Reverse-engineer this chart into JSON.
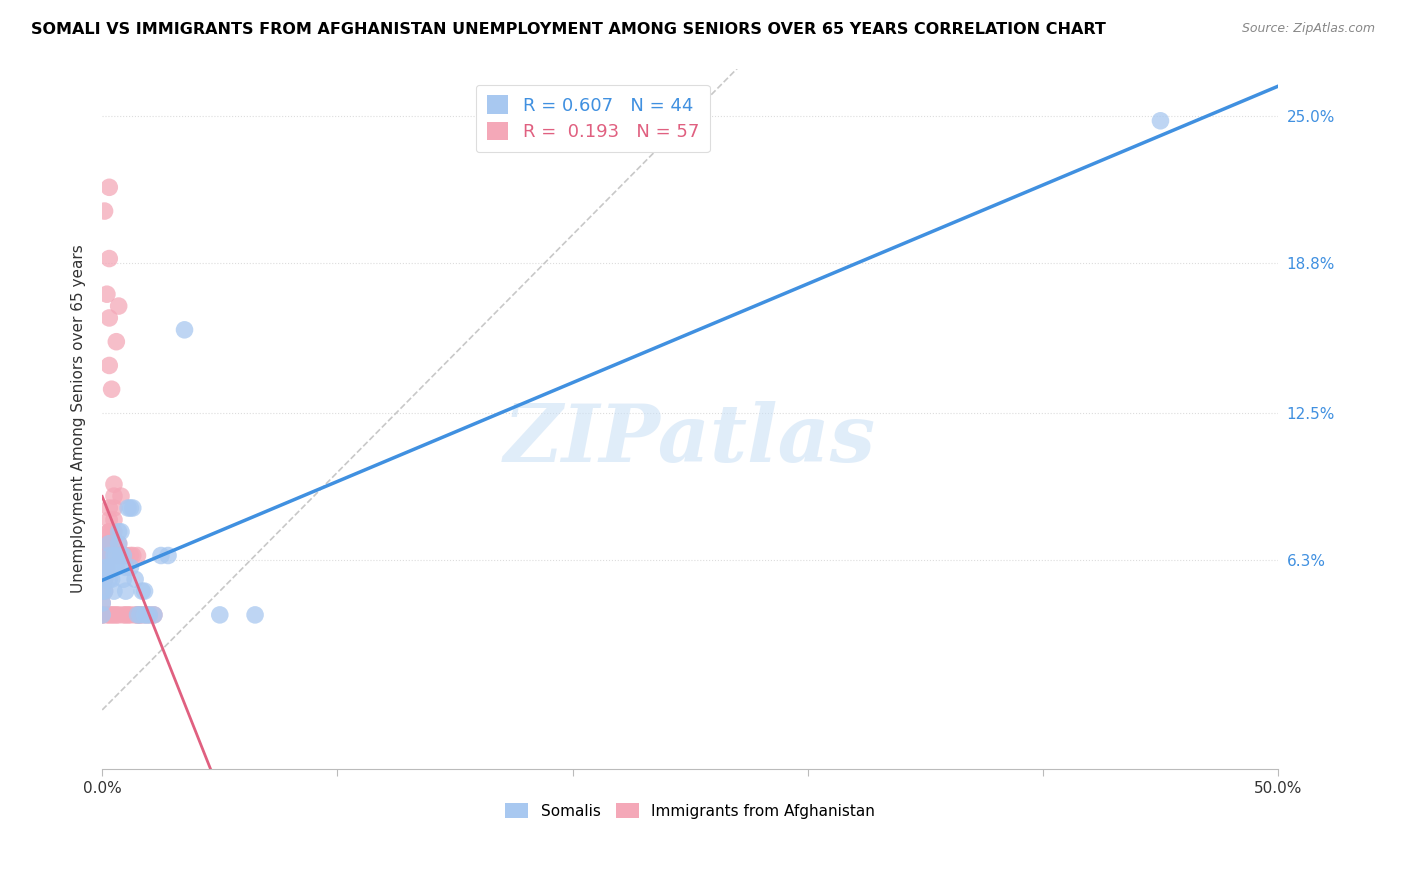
{
  "title": "SOMALI VS IMMIGRANTS FROM AFGHANISTAN UNEMPLOYMENT AMONG SENIORS OVER 65 YEARS CORRELATION CHART",
  "source": "Source: ZipAtlas.com",
  "ylabel": "Unemployment Among Seniors over 65 years",
  "watermark": "ZIPatlas",
  "somali_color": "#A8C8F0",
  "afghan_color": "#F4A8B8",
  "regression_somali_color": "#4090E0",
  "regression_afghan_color": "#E06080",
  "diagonal_color": "#C8C8C8",
  "xlim": [
    0.0,
    0.5
  ],
  "ylim": [
    -0.025,
    0.27
  ],
  "ytick_values": [
    0.063,
    0.125,
    0.188,
    0.25
  ],
  "ytick_labels": [
    "6.3%",
    "12.5%",
    "18.8%",
    "25.0%"
  ],
  "xtick_values": [
    0.0,
    0.1,
    0.2,
    0.3,
    0.4,
    0.5
  ],
  "xtick_labels": [
    "0.0%",
    "",
    "",
    "",
    "",
    "50.0%"
  ],
  "legend_somali_R": 0.607,
  "legend_somali_N": 44,
  "legend_afghan_R": 0.193,
  "legend_afghan_N": 57,
  "somali_points_x": [
    0.0,
    0.0,
    0.0,
    0.001,
    0.001,
    0.002,
    0.002,
    0.003,
    0.003,
    0.003,
    0.004,
    0.004,
    0.005,
    0.005,
    0.005,
    0.006,
    0.006,
    0.007,
    0.007,
    0.008,
    0.008,
    0.009,
    0.009,
    0.01,
    0.01,
    0.011,
    0.012,
    0.012,
    0.013,
    0.014,
    0.015,
    0.016,
    0.017,
    0.018,
    0.018,
    0.019,
    0.02,
    0.022,
    0.025,
    0.028,
    0.035,
    0.05,
    0.065,
    0.45
  ],
  "somali_points_y": [
    0.04,
    0.05,
    0.045,
    0.05,
    0.055,
    0.06,
    0.06,
    0.055,
    0.065,
    0.07,
    0.055,
    0.06,
    0.05,
    0.06,
    0.065,
    0.06,
    0.065,
    0.07,
    0.075,
    0.075,
    0.065,
    0.065,
    0.055,
    0.05,
    0.06,
    0.085,
    0.06,
    0.085,
    0.085,
    0.055,
    0.04,
    0.04,
    0.05,
    0.05,
    0.04,
    0.04,
    0.04,
    0.04,
    0.065,
    0.065,
    0.16,
    0.04,
    0.04,
    0.248
  ],
  "afghan_points_x": [
    0.0,
    0.0,
    0.0,
    0.0,
    0.001,
    0.001,
    0.001,
    0.001,
    0.001,
    0.002,
    0.002,
    0.002,
    0.002,
    0.002,
    0.002,
    0.003,
    0.003,
    0.003,
    0.003,
    0.003,
    0.003,
    0.003,
    0.004,
    0.004,
    0.004,
    0.004,
    0.005,
    0.005,
    0.005,
    0.005,
    0.005,
    0.005,
    0.006,
    0.006,
    0.007,
    0.007,
    0.007,
    0.008,
    0.008,
    0.008,
    0.009,
    0.009,
    0.01,
    0.01,
    0.01,
    0.011,
    0.012,
    0.012,
    0.013,
    0.014,
    0.015,
    0.015,
    0.016,
    0.016,
    0.018,
    0.02,
    0.022
  ],
  "afghan_points_y": [
    0.04,
    0.045,
    0.05,
    0.04,
    0.05,
    0.055,
    0.055,
    0.06,
    0.065,
    0.06,
    0.065,
    0.065,
    0.07,
    0.07,
    0.04,
    0.07,
    0.075,
    0.07,
    0.075,
    0.08,
    0.085,
    0.04,
    0.065,
    0.07,
    0.075,
    0.04,
    0.075,
    0.08,
    0.085,
    0.09,
    0.065,
    0.04,
    0.065,
    0.04,
    0.065,
    0.07,
    0.04,
    0.065,
    0.065,
    0.09,
    0.065,
    0.04,
    0.065,
    0.065,
    0.04,
    0.04,
    0.065,
    0.04,
    0.065,
    0.04,
    0.04,
    0.065,
    0.04,
    0.04,
    0.04,
    0.04,
    0.04
  ],
  "afghan_outlier_x": [
    0.001,
    0.002,
    0.003,
    0.003,
    0.003,
    0.003,
    0.004,
    0.005,
    0.006,
    0.007
  ],
  "afghan_outlier_y": [
    0.21,
    0.175,
    0.22,
    0.19,
    0.165,
    0.145,
    0.135,
    0.095,
    0.155,
    0.17
  ]
}
